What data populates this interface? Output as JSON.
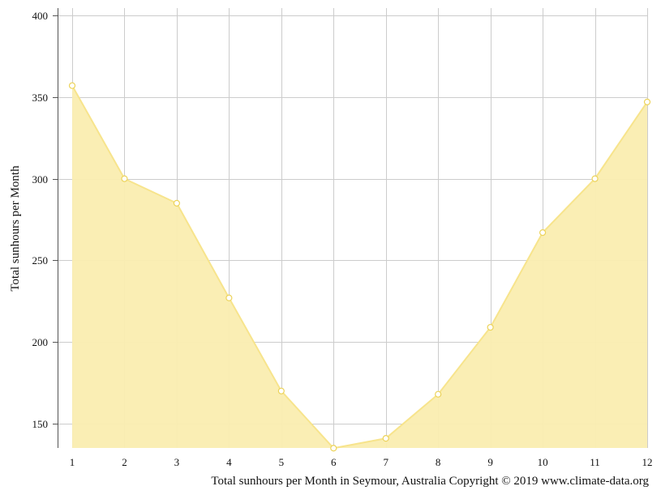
{
  "chart_data": {
    "type": "area",
    "title": "",
    "xlabel": "Total sunhours per Month in Seymour, Australia Copyright © 2019 www.climate-data.org",
    "ylabel": "Total sunhours per Month",
    "x": [
      1,
      2,
      3,
      4,
      5,
      6,
      7,
      8,
      9,
      10,
      11,
      12
    ],
    "x_tick_labels": [
      "1",
      "2",
      "3",
      "4",
      "5",
      "6",
      "7",
      "8",
      "9",
      "10",
      "11",
      "12"
    ],
    "series": [
      {
        "values": [
          357,
          300,
          285,
          227,
          170,
          135,
          141,
          168,
          209,
          267,
          300,
          347
        ]
      }
    ],
    "ylim": [
      135,
      400
    ],
    "y_ticks": [
      150,
      200,
      250,
      300,
      350,
      400
    ],
    "grid": true,
    "colors": {
      "fill": "#faedb0",
      "line": "#f7e48c",
      "marker_stroke": "#ecd35a",
      "marker_fill": "#ffffff",
      "grid": "#cccccc",
      "axis": "#555555"
    }
  }
}
